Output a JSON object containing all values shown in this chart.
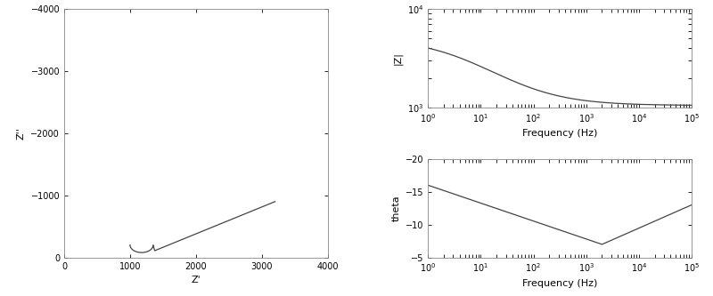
{
  "nyquist": {
    "xlim": [
      0,
      4000
    ],
    "ylim": [
      -4000,
      0
    ],
    "xlabel": "Z'",
    "ylabel": "Z''",
    "xticks": [
      0,
      1000,
      2000,
      3000,
      4000
    ],
    "yticks": [
      0,
      -1000,
      -2000,
      -3000,
      -4000
    ]
  },
  "bode_mag": {
    "xlim_log": [
      1,
      100000
    ],
    "ylim_log": [
      1000,
      10000
    ],
    "xlabel": "Frequency (Hz)",
    "ylabel": "|Z|"
  },
  "bode_phase": {
    "xlim_log": [
      1,
      100000
    ],
    "ylim": [
      -20,
      -5
    ],
    "xlabel": "Frequency (Hz)",
    "ylabel": "theta",
    "yticks": [
      -20,
      -15,
      -10,
      -5
    ]
  },
  "line_color": "#444444",
  "line_width": 0.9,
  "background_color": "#ffffff",
  "tick_fontsize": 7,
  "label_fontsize": 8
}
